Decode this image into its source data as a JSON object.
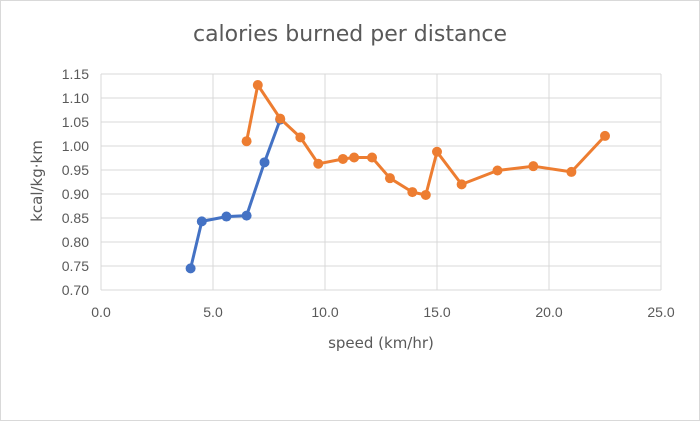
{
  "chart_data": {
    "type": "scatter",
    "title": "calories burned per distance",
    "xlabel": "speed (km/hr)",
    "ylabel": "kcal/kg·km",
    "xlim": [
      0,
      25
    ],
    "ylim": [
      0.7,
      1.15
    ],
    "x_ticks": [
      "0.0",
      "5.0",
      "10.0",
      "15.0",
      "20.0",
      "25.0"
    ],
    "y_ticks": [
      "0.70",
      "0.75",
      "0.80",
      "0.85",
      "0.90",
      "0.95",
      "1.00",
      "1.05",
      "1.10",
      "1.15"
    ],
    "grid": "horizontal and vertical",
    "legend": "none",
    "series": [
      {
        "color": "#4472c4",
        "points": [
          [
            4.0,
            0.745
          ],
          [
            4.5,
            0.843
          ],
          [
            5.6,
            0.853
          ],
          [
            6.5,
            0.855
          ],
          [
            7.3,
            0.966
          ],
          [
            8.0,
            1.055
          ]
        ]
      },
      {
        "color": "#ed7d31",
        "points": [
          [
            6.5,
            1.01
          ],
          [
            7.0,
            1.127
          ],
          [
            8.0,
            1.057
          ],
          [
            8.9,
            1.018
          ],
          [
            9.7,
            0.963
          ],
          [
            10.8,
            0.973
          ],
          [
            11.3,
            0.976
          ],
          [
            12.1,
            0.976
          ],
          [
            12.9,
            0.933
          ],
          [
            13.9,
            0.904
          ],
          [
            14.5,
            0.898
          ],
          [
            15.0,
            0.988
          ],
          [
            16.1,
            0.92
          ],
          [
            17.7,
            0.949
          ],
          [
            19.3,
            0.958
          ],
          [
            21.0,
            0.946
          ],
          [
            22.5,
            1.021
          ]
        ]
      }
    ]
  }
}
